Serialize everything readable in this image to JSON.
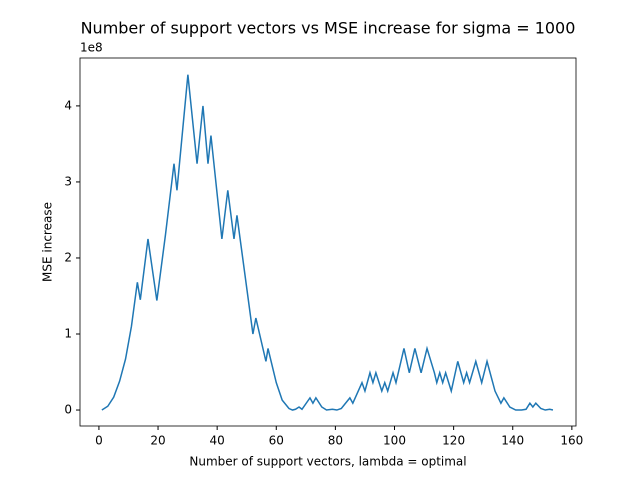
{
  "chart_data": {
    "type": "line",
    "title": "Number of support vectors vs MSE increase for sigma = 1000",
    "x_label": "Number of support vectors, lambda = optimal",
    "y_label": "MSE increase",
    "y_offset_label": "1e8",
    "x": [
      1,
      3,
      5,
      7,
      9,
      11,
      13,
      14,
      16.6,
      19.6,
      22.5,
      25.4,
      26.4,
      30.1,
      33.2,
      35.2,
      36.9,
      37.9,
      41.6,
      43.6,
      45.7,
      46.7,
      52.1,
      53.1,
      56.5,
      57.2,
      60,
      62,
      64.3,
      65.5,
      66.5,
      67.7,
      68.7,
      71.4,
      72.4,
      73.4,
      75.4,
      77,
      79,
      80.5,
      82,
      84.9,
      85.9,
      89,
      90,
      91.7,
      92.7,
      93.7,
      95.7,
      96.7,
      97.7,
      99.5,
      100.5,
      103.2,
      105,
      106.9,
      109,
      111,
      113.5,
      114.3,
      115.3,
      116.3,
      117.3,
      119.2,
      121.4,
      123.4,
      124.4,
      125.4,
      127.5,
      129.5,
      131.3,
      134,
      136,
      137,
      139,
      141,
      143,
      144.5,
      145.8,
      146.8,
      147.8,
      149.5,
      151,
      152.5,
      153.6
    ],
    "series": [
      {
        "color": "#1f77b4",
        "values": [
          0,
          0.05,
          0.17,
          0.38,
          0.67,
          1.1,
          1.68,
          1.45,
          2.25,
          1.44,
          2.3,
          3.24,
          2.89,
          4.41,
          3.24,
          4.0,
          3.24,
          3.61,
          2.25,
          2.89,
          2.25,
          2.56,
          1.0,
          1.21,
          0.64,
          0.81,
          0.36,
          0.13,
          0.02,
          0,
          0.01,
          0.04,
          0.01,
          0.16,
          0.09,
          0.16,
          0.04,
          0,
          0.01,
          0,
          0.02,
          0.16,
          0.09,
          0.36,
          0.25,
          0.49,
          0.36,
          0.49,
          0.25,
          0.36,
          0.25,
          0.49,
          0.36,
          0.81,
          0.49,
          0.81,
          0.49,
          0.81,
          0.49,
          0.36,
          0.49,
          0.36,
          0.49,
          0.25,
          0.64,
          0.36,
          0.49,
          0.36,
          0.64,
          0.36,
          0.64,
          0.25,
          0.09,
          0.16,
          0.04,
          0,
          0,
          0.01,
          0.09,
          0.04,
          0.09,
          0.02,
          0,
          0.01,
          0
        ]
      }
    ],
    "xlim": [
      -6.4,
      161.4
    ],
    "ylim": [
      -0.21,
      4.63
    ],
    "xticks": [
      0,
      20,
      40,
      60,
      80,
      100,
      120,
      140,
      160
    ],
    "yticks": [
      0,
      1,
      2,
      3,
      4
    ]
  }
}
